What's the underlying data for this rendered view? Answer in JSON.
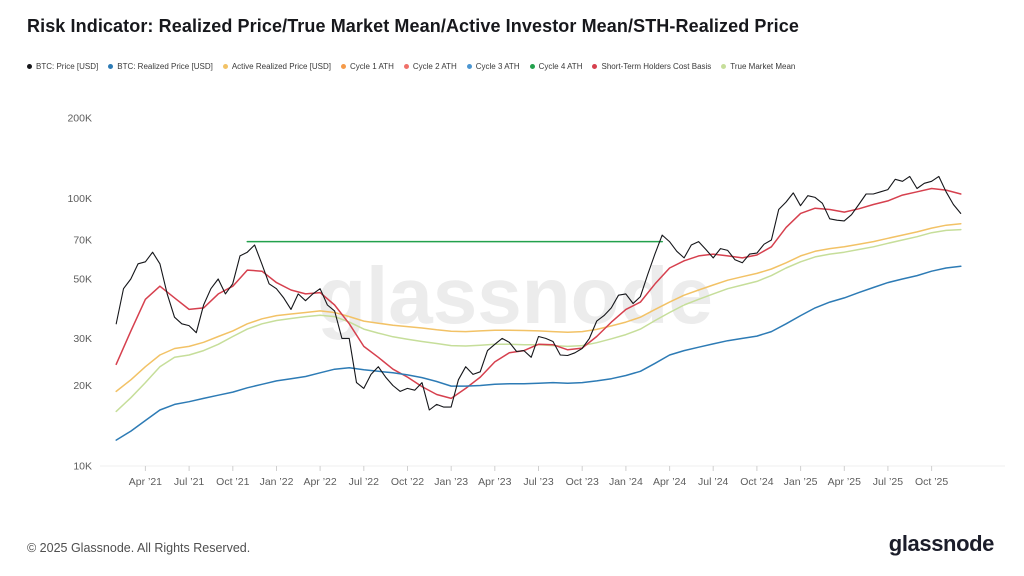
{
  "title": "Risk Indicator: Realized Price/True Market Mean/Active Investor Mean/STH-Realized Price",
  "watermark": "glassnode",
  "footer": {
    "copyright": "© 2025 Glassnode. All Rights Reserved.",
    "brand": "glassnode"
  },
  "legend": [
    {
      "label": "BTC: Price [USD]",
      "color": "#15161a"
    },
    {
      "label": "BTC: Realized Price [USD]",
      "color": "#2d7bb5"
    },
    {
      "label": "Active Realized Price [USD]",
      "color": "#f2c266"
    },
    {
      "label": "Cycle 1 ATH",
      "color": "#f59a49"
    },
    {
      "label": "Cycle 2 ATH",
      "color": "#f07069"
    },
    {
      "label": "Cycle 3 ATH",
      "color": "#4b96d1"
    },
    {
      "label": "Cycle 4 ATH",
      "color": "#23a14d"
    },
    {
      "label": "Short-Term Holders Cost Basis",
      "color": "#d6404e"
    },
    {
      "label": "True Market Mean",
      "color": "#c6de9a"
    }
  ],
  "chart_data": {
    "type": "line",
    "title": "Risk Indicator: Realized Price/True Market Mean/Active Investor Mean/STH-Realized Price",
    "xlabel": "",
    "ylabel": "",
    "values_unit": "thousand USD",
    "y_axis": {
      "scale": "log",
      "range_usd": [
        10000,
        200000
      ],
      "ticks": [
        {
          "label": "200K",
          "value": 200
        },
        {
          "label": "100K",
          "value": 100
        },
        {
          "label": "70K",
          "value": 70
        },
        {
          "label": "50K",
          "value": 50
        },
        {
          "label": "30K",
          "value": 30
        },
        {
          "label": "20K",
          "value": 20
        },
        {
          "label": "10K",
          "value": 10
        }
      ]
    },
    "x_axis": {
      "ticks": [
        "Apr ’21",
        "Jul ’21",
        "Oct ’21",
        "Jan ’22",
        "Apr ’22",
        "Jul ’22",
        "Oct ’22",
        "Jan ’23",
        "Apr ’23",
        "Jul ’23",
        "Oct ’23",
        "Jan ’24",
        "Apr ’24",
        "Jul ’24",
        "Oct ’24",
        "Jan ’25",
        "Apr ’25",
        "Jul ’25",
        "Oct ’25"
      ],
      "tick_positions": [
        2021.25,
        2021.5,
        2021.75,
        2022.0,
        2022.25,
        2022.5,
        2022.75,
        2023.0,
        2023.25,
        2023.5,
        2023.75,
        2024.0,
        2024.25,
        2024.5,
        2024.75,
        2025.0,
        2025.25,
        2025.5,
        2025.75
      ]
    },
    "legend_only_series": [
      "Cycle 1 ATH",
      "Cycle 2 ATH",
      "Cycle 3 ATH"
    ],
    "months": [
      2021.083,
      2021.167,
      2021.25,
      2021.333,
      2021.417,
      2021.5,
      2021.583,
      2021.667,
      2021.75,
      2021.833,
      2021.917,
      2022.0,
      2022.083,
      2022.167,
      2022.25,
      2022.333,
      2022.417,
      2022.5,
      2022.583,
      2022.667,
      2022.75,
      2022.833,
      2022.917,
      2023.0,
      2023.083,
      2023.167,
      2023.25,
      2023.333,
      2023.417,
      2023.5,
      2023.583,
      2023.667,
      2023.75,
      2023.833,
      2023.917,
      2024.0,
      2024.083,
      2024.167,
      2024.25,
      2024.333,
      2024.417,
      2024.5,
      2024.583,
      2024.667,
      2024.75,
      2024.833,
      2024.917,
      2025.0,
      2025.083,
      2025.167,
      2025.25,
      2025.333,
      2025.417,
      2025.5,
      2025.583,
      2025.667,
      2025.75,
      2025.833,
      2025.917
    ],
    "series": [
      {
        "name": "True Market Mean",
        "color": "#c6de9a",
        "width": 1.5,
        "x": "months",
        "values": [
          16,
          18,
          20.5,
          23.5,
          25.5,
          26,
          27,
          28.5,
          30.5,
          32.5,
          34,
          35,
          35.6,
          36.2,
          36.6,
          36.2,
          34.5,
          32.5,
          31.4,
          30.4,
          29.8,
          29.2,
          28.7,
          28.2,
          28.1,
          28.3,
          28.5,
          28.5,
          28.4,
          28.4,
          28.2,
          28.0,
          28.2,
          28.9,
          29.9,
          31,
          32.5,
          35,
          37.5,
          40,
          42,
          44,
          46,
          47.5,
          49,
          51.5,
          55,
          58,
          60.5,
          62,
          63,
          64.5,
          66,
          68,
          70,
          72,
          74.5,
          76,
          76.5
        ]
      },
      {
        "name": "Active Realized Price [USD]",
        "color": "#f2c266",
        "width": 1.5,
        "x": "months",
        "values": [
          19,
          21,
          23.5,
          26,
          27.5,
          28,
          29,
          30.5,
          32,
          34,
          35.5,
          36.5,
          37,
          37.5,
          38,
          37.5,
          36.2,
          34.8,
          34.2,
          33.6,
          33.2,
          32.8,
          32.3,
          31.9,
          31.8,
          32.0,
          32.2,
          32.2,
          32.1,
          32.0,
          31.8,
          31.6,
          31.8,
          32.4,
          33.4,
          34.5,
          36.0,
          38.5,
          41.0,
          43.5,
          45.5,
          47.5,
          49.5,
          51.0,
          52.5,
          54.5,
          57.5,
          61,
          63.5,
          65,
          66,
          67.5,
          69,
          71,
          73,
          75,
          77.5,
          79.5,
          80.5
        ]
      },
      {
        "name": "Cycle 4 ATH",
        "color": "#23a14d",
        "width": 1.5,
        "x": [
          2021.833,
          2024.208
        ],
        "values": [
          69,
          69
        ]
      },
      {
        "name": "Short-Term Holders Cost Basis",
        "color": "#d6404e",
        "width": 1.5,
        "x": "months",
        "values": [
          24,
          32,
          42,
          47,
          42.5,
          38.5,
          39,
          44,
          47,
          54,
          53.5,
          48.5,
          45.5,
          44,
          44.5,
          40,
          34,
          28,
          25.5,
          23,
          21.5,
          19.8,
          18.5,
          17.9,
          19.5,
          21.5,
          24.5,
          26.5,
          27,
          28.5,
          28.4,
          27.2,
          27.6,
          30.5,
          34.5,
          38.5,
          41,
          48,
          55,
          58.5,
          61,
          62,
          61,
          60,
          61.5,
          66,
          78,
          88,
          92,
          91,
          89,
          91.5,
          95,
          98,
          103,
          106,
          109,
          107.5,
          104
        ]
      },
      {
        "name": "BTC: Realized Price [USD]",
        "color": "#2d7bb5",
        "width": 1.5,
        "x": "months",
        "values": [
          12.5,
          13.5,
          14.8,
          16.2,
          17.0,
          17.4,
          17.9,
          18.4,
          18.9,
          19.6,
          20.2,
          20.8,
          21.2,
          21.6,
          22.3,
          23.0,
          23.3,
          22.9,
          22.6,
          22.3,
          21.9,
          21.4,
          20.7,
          19.9,
          19.9,
          20.0,
          20.2,
          20.3,
          20.3,
          20.4,
          20.5,
          20.4,
          20.5,
          20.8,
          21.2,
          21.8,
          22.6,
          24.2,
          26.0,
          27.0,
          27.8,
          28.6,
          29.4,
          30.0,
          30.6,
          31.8,
          34.0,
          36.5,
          39.0,
          41.0,
          42.5,
          44.5,
          46.5,
          48.5,
          50.0,
          51.5,
          53.5,
          55.0,
          55.8
        ]
      },
      {
        "name": "BTC: Price [USD]",
        "color": "#15161a",
        "width": 1.1,
        "x_start": 2021.083,
        "x_step": 0.041667,
        "values": [
          34,
          46,
          50,
          57,
          58,
          63,
          57,
          44,
          36,
          34,
          33.5,
          31.5,
          40,
          46,
          50,
          44,
          48,
          61,
          63,
          67,
          57,
          48,
          46,
          42.5,
          38.5,
          44,
          41.5,
          44,
          46,
          40,
          38,
          30,
          30,
          20.5,
          19.5,
          22,
          23.5,
          21.5,
          20,
          19,
          19.5,
          19.2,
          20.5,
          16.2,
          17,
          16.6,
          16.6,
          21,
          23.5,
          22,
          22.5,
          27,
          28.5,
          30,
          29,
          26.8,
          27,
          25.5,
          30.5,
          30,
          29.2,
          26,
          25.9,
          26.5,
          27.5,
          30,
          34.8,
          36.5,
          39,
          43.5,
          44,
          40.5,
          43,
          52,
          62,
          73,
          69,
          63.5,
          60,
          67,
          69,
          64.5,
          60,
          65,
          64,
          59,
          57.5,
          62,
          62.5,
          67.5,
          70,
          91,
          97,
          105,
          94,
          102.5,
          101,
          96,
          84,
          83,
          82.5,
          87,
          95,
          104,
          104,
          106,
          108,
          118,
          116,
          121,
          109,
          114,
          116,
          121,
          106,
          95,
          88
        ]
      }
    ]
  }
}
